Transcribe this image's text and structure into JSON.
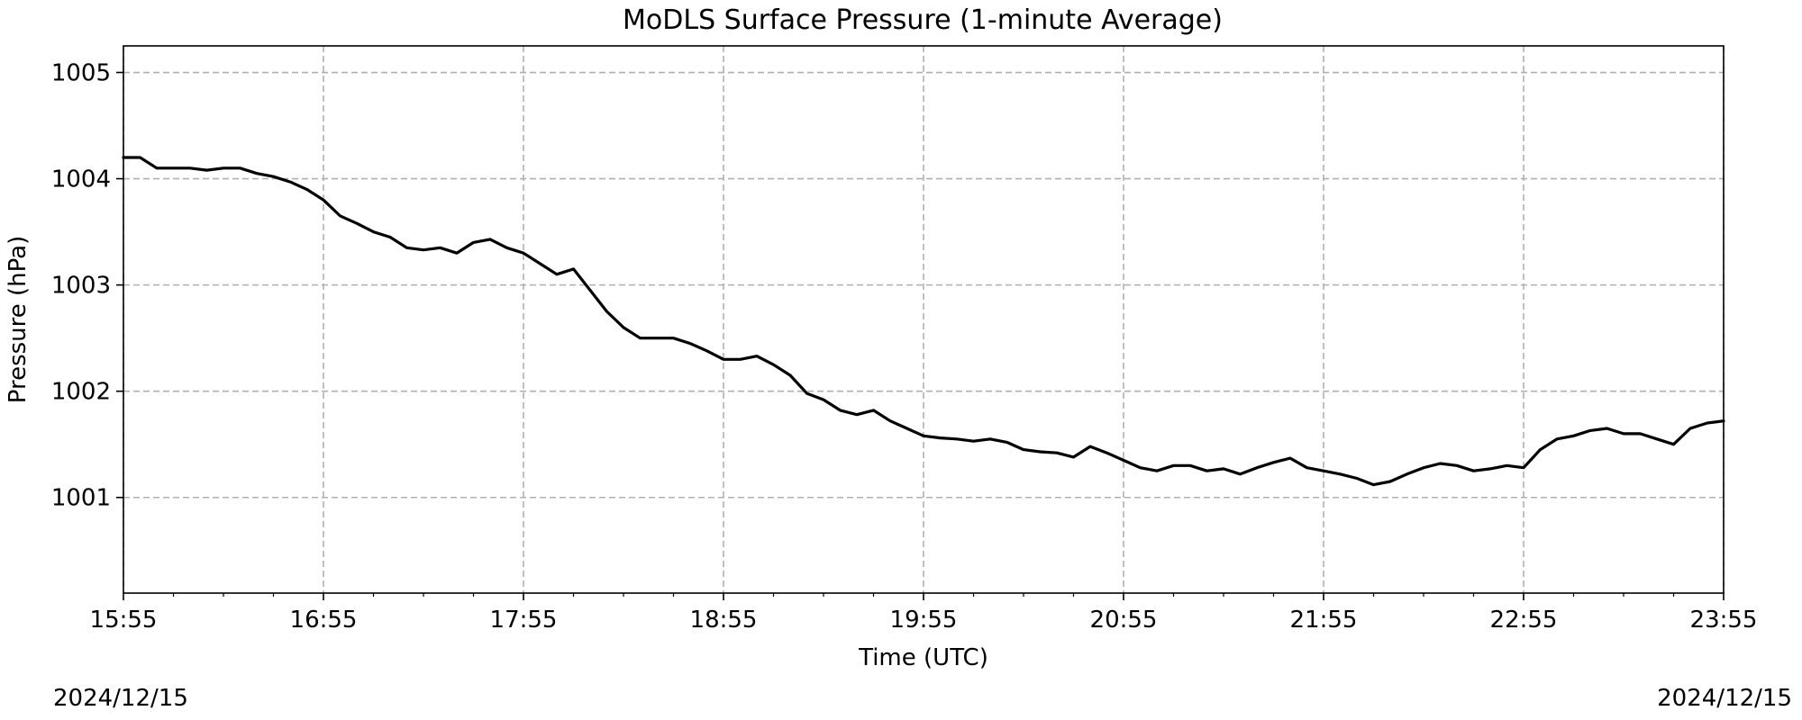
{
  "chart_data": {
    "type": "line",
    "title": "MoDLS Surface Pressure (1-minute Average)",
    "xlabel": "Time (UTC)",
    "ylabel": "Pressure (hPa)",
    "x_ticks": [
      "15:55",
      "16:55",
      "17:55",
      "18:55",
      "19:55",
      "20:55",
      "21:55",
      "22:55",
      "23:55"
    ],
    "y_ticks": [
      1001,
      1002,
      1003,
      1004,
      1005
    ],
    "xlim": [
      "15:55",
      "23:55"
    ],
    "ylim": [
      1000.1,
      1005.25
    ],
    "grid": true,
    "line_color": "#000000",
    "date_left": "2024/12/15",
    "date_right": "2024/12/15",
    "series": [
      {
        "x": [
          "15:55",
          "16:00",
          "16:05",
          "16:10",
          "16:15",
          "16:20",
          "16:25",
          "16:30",
          "16:35",
          "16:40",
          "16:45",
          "16:50",
          "16:55",
          "17:00",
          "17:05",
          "17:10",
          "17:15",
          "17:20",
          "17:25",
          "17:30",
          "17:35",
          "17:40",
          "17:45",
          "17:50",
          "17:55",
          "18:00",
          "18:05",
          "18:10",
          "18:15",
          "18:20",
          "18:25",
          "18:30",
          "18:35",
          "18:40",
          "18:45",
          "18:50",
          "18:55",
          "19:00",
          "19:05",
          "19:10",
          "19:15",
          "19:20",
          "19:25",
          "19:30",
          "19:35",
          "19:40",
          "19:45",
          "19:50",
          "19:55",
          "20:00",
          "20:05",
          "20:10",
          "20:15",
          "20:20",
          "20:25",
          "20:30",
          "20:35",
          "20:40",
          "20:45",
          "20:50",
          "20:55",
          "21:00",
          "21:05",
          "21:10",
          "21:15",
          "21:20",
          "21:25",
          "21:30",
          "21:35",
          "21:40",
          "21:45",
          "21:50",
          "21:55",
          "22:00",
          "22:05",
          "22:10",
          "22:15",
          "22:20",
          "22:25",
          "22:30",
          "22:35",
          "22:40",
          "22:45",
          "22:50",
          "22:55",
          "23:00",
          "23:05",
          "23:10",
          "23:15",
          "23:20",
          "23:25",
          "23:30",
          "23:35",
          "23:40",
          "23:45",
          "23:50",
          "23:55"
        ],
        "y": [
          1004.2,
          1004.2,
          1004.1,
          1004.1,
          1004.1,
          1004.08,
          1004.1,
          1004.1,
          1004.05,
          1004.02,
          1003.97,
          1003.9,
          1003.8,
          1003.65,
          1003.58,
          1003.5,
          1003.45,
          1003.35,
          1003.33,
          1003.35,
          1003.3,
          1003.4,
          1003.43,
          1003.35,
          1003.3,
          1003.2,
          1003.1,
          1003.15,
          1002.95,
          1002.75,
          1002.6,
          1002.5,
          1002.5,
          1002.5,
          1002.45,
          1002.38,
          1002.3,
          1002.3,
          1002.33,
          1002.25,
          1002.15,
          1001.98,
          1001.92,
          1001.82,
          1001.78,
          1001.82,
          1001.72,
          1001.65,
          1001.58,
          1001.56,
          1001.55,
          1001.53,
          1001.55,
          1001.52,
          1001.45,
          1001.43,
          1001.42,
          1001.38,
          1001.48,
          1001.42,
          1001.35,
          1001.28,
          1001.25,
          1001.3,
          1001.3,
          1001.25,
          1001.27,
          1001.22,
          1001.28,
          1001.33,
          1001.37,
          1001.28,
          1001.25,
          1001.22,
          1001.18,
          1001.12,
          1001.15,
          1001.22,
          1001.28,
          1001.32,
          1001.3,
          1001.25,
          1001.27,
          1001.3,
          1001.28,
          1001.45,
          1001.55,
          1001.58,
          1001.63,
          1001.65,
          1001.6,
          1001.6,
          1001.55,
          1001.5,
          1001.65,
          1001.7,
          1001.72
        ]
      }
    ]
  }
}
